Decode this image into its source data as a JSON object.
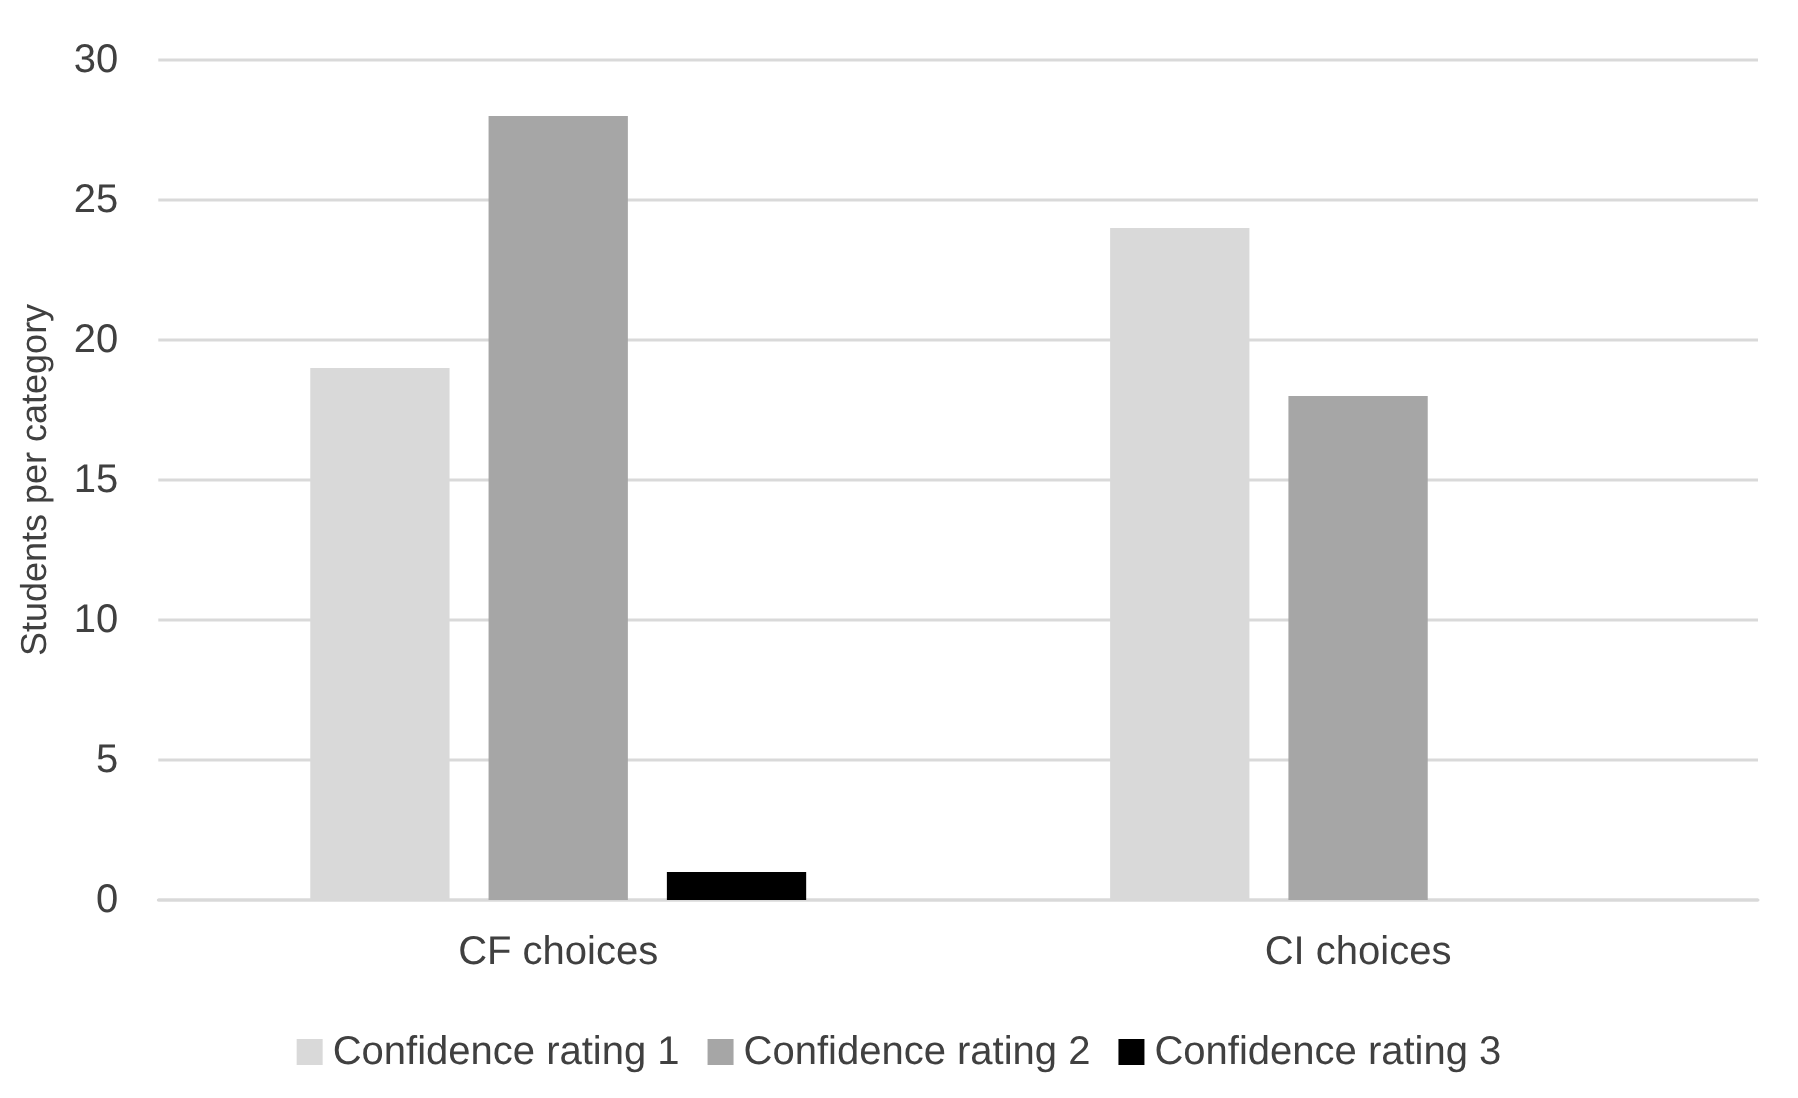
{
  "chart_data": {
    "type": "bar",
    "ylabel": "Students per category",
    "categories": [
      "CF choices",
      "CI choices"
    ],
    "series": [
      {
        "name": "Confidence rating 1",
        "color": "#d9d9d9",
        "values": [
          19,
          24
        ]
      },
      {
        "name": "Confidence rating 2",
        "color": "#a6a6a6",
        "values": [
          28,
          18
        ]
      },
      {
        "name": "Confidence rating 3",
        "color": "#000000",
        "values": [
          1,
          0
        ]
      }
    ],
    "ylim": [
      0,
      30
    ],
    "yticks": [
      0,
      5,
      10,
      15,
      20,
      25,
      30
    ],
    "grid": "y",
    "legend": "bottom"
  }
}
